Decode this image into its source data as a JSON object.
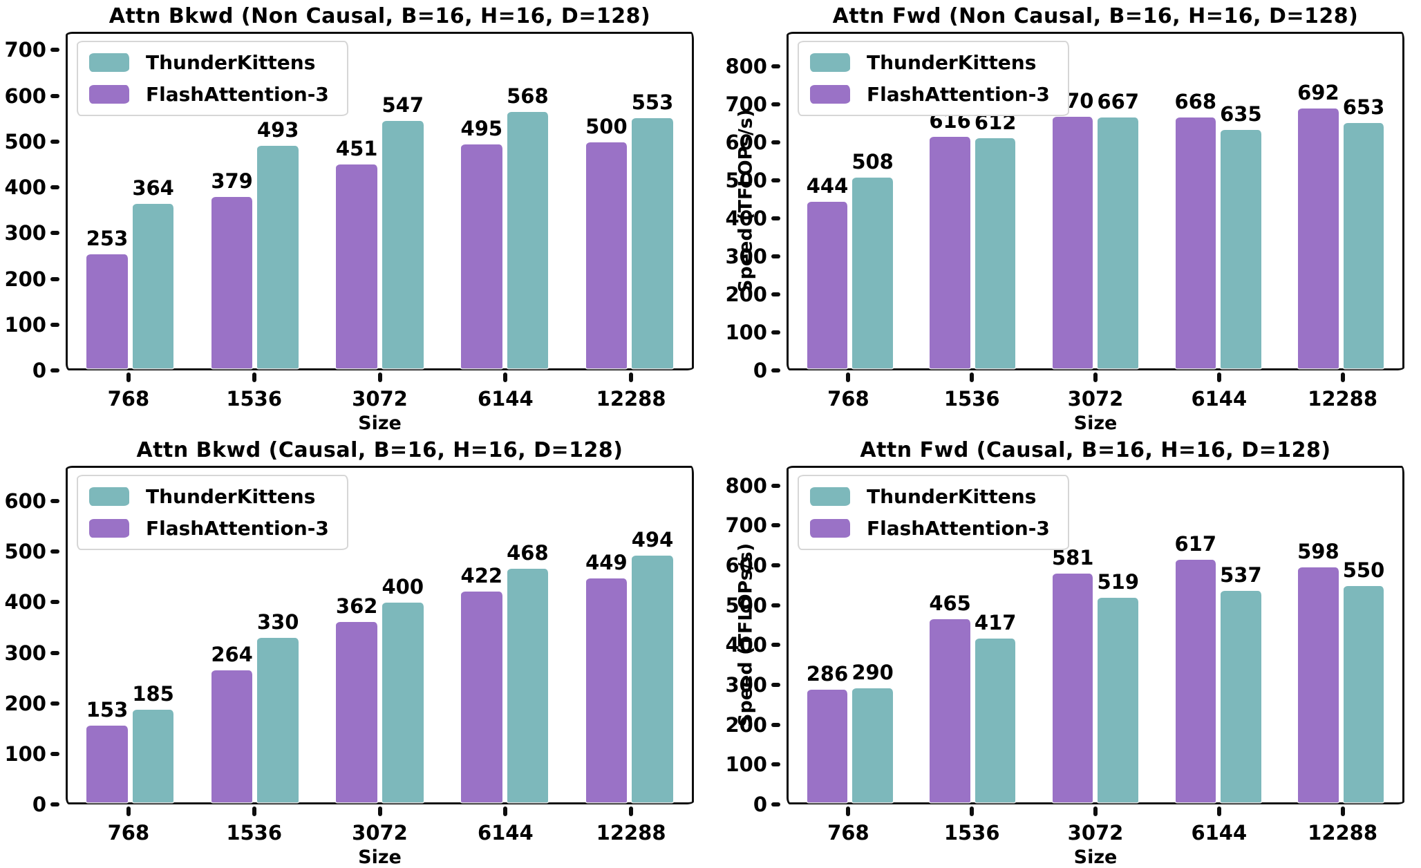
{
  "page": {
    "background": "#ffffff"
  },
  "colors": {
    "ThunderKittens": "#7db8bb",
    "FlashAttention-3": "#9a72c6",
    "axis": "#0d0d0d",
    "legend_border": "#d6d6d6",
    "text": "#000000"
  },
  "chart_data": [
    {
      "type": "bar",
      "title": "Attn Bkwd (Non Causal, B=16, H=16, D=128)",
      "xlabel": "Size",
      "ylabel": "",
      "categories": [
        "768",
        "1536",
        "3072",
        "6144",
        "12288"
      ],
      "series": [
        {
          "name": "FlashAttention-3",
          "values": [
            253,
            379,
            451,
            495,
            500
          ]
        },
        {
          "name": "ThunderKittens",
          "values": [
            364,
            493,
            547,
            568,
            553
          ]
        }
      ],
      "legend": [
        "ThunderKittens",
        "FlashAttention-3"
      ],
      "legend_position": "upper left",
      "yticks": [
        0,
        100,
        200,
        300,
        400,
        500,
        600,
        700
      ],
      "ylim": [
        0,
        740
      ],
      "grid": false
    },
    {
      "type": "bar",
      "title": "Attn Fwd (Non Causal, B=16, H=16, D=128)",
      "xlabel": "Size",
      "ylabel": "Speed (TFLOPs/s)",
      "categories": [
        "768",
        "1536",
        "3072",
        "6144",
        "12288"
      ],
      "series": [
        {
          "name": "FlashAttention-3",
          "values": [
            444,
            616,
            670,
            668,
            692
          ]
        },
        {
          "name": "ThunderKittens",
          "values": [
            508,
            612,
            667,
            635,
            653
          ]
        }
      ],
      "legend": [
        "ThunderKittens",
        "FlashAttention-3"
      ],
      "legend_position": "upper left",
      "yticks": [
        0,
        100,
        200,
        300,
        400,
        500,
        600,
        700,
        800
      ],
      "ylim": [
        0,
        890
      ],
      "grid": false
    },
    {
      "type": "bar",
      "title": "Attn Bkwd (Causal, B=16, H=16, D=128)",
      "xlabel": "Size",
      "ylabel": "",
      "categories": [
        "768",
        "1536",
        "3072",
        "6144",
        "12288"
      ],
      "series": [
        {
          "name": "FlashAttention-3",
          "values": [
            153,
            264,
            362,
            422,
            449
          ]
        },
        {
          "name": "ThunderKittens",
          "values": [
            185,
            330,
            400,
            468,
            494
          ]
        }
      ],
      "legend": [
        "ThunderKittens",
        "FlashAttention-3"
      ],
      "legend_position": "upper left",
      "yticks": [
        0,
        100,
        200,
        300,
        400,
        500,
        600
      ],
      "ylim": [
        0,
        670
      ],
      "grid": false
    },
    {
      "type": "bar",
      "title": "Attn Fwd (Causal, B=16, H=16, D=128)",
      "xlabel": "Size",
      "ylabel": "Speed (TFLOPs/s)",
      "categories": [
        "768",
        "1536",
        "3072",
        "6144",
        "12288"
      ],
      "series": [
        {
          "name": "FlashAttention-3",
          "values": [
            286,
            465,
            581,
            617,
            598
          ]
        },
        {
          "name": "ThunderKittens",
          "values": [
            290,
            417,
            519,
            537,
            550
          ]
        }
      ],
      "legend": [
        "ThunderKittens",
        "FlashAttention-3"
      ],
      "legend_position": "upper left",
      "yticks": [
        0,
        100,
        200,
        300,
        400,
        500,
        600,
        700,
        800
      ],
      "ylim": [
        0,
        850
      ],
      "grid": false
    }
  ]
}
